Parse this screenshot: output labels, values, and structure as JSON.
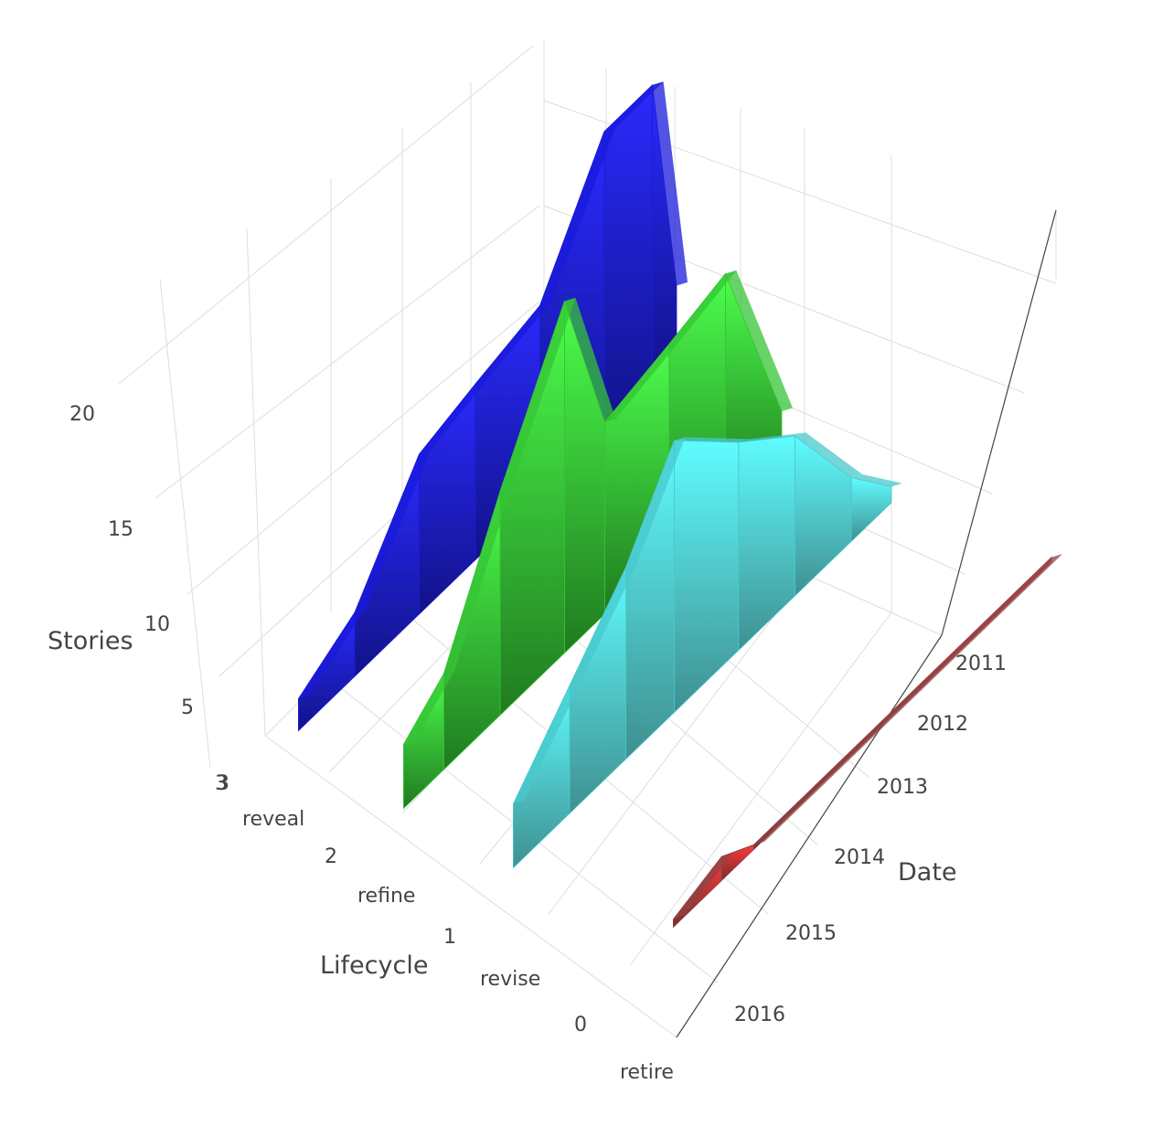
{
  "chart_data": {
    "type": "3d-ribbon",
    "axes": {
      "x": {
        "title": "Date",
        "ticks": [
          "2011",
          "2012",
          "2013",
          "2014",
          "2015",
          "2016"
        ]
      },
      "y": {
        "title": "Lifecycle",
        "ticks": [
          "3",
          "reveal",
          "2",
          "refine",
          "1",
          "revise",
          "0",
          "retire"
        ]
      },
      "z": {
        "title": "Stories",
        "ticks": [
          "3",
          "5",
          "10",
          "15",
          "20"
        ]
      }
    },
    "series": [
      {
        "lifecycle": "reveal",
        "color": "#1a1adb",
        "points": [
          {
            "date": 2011.3,
            "stories": 5
          },
          {
            "date": 2011.6,
            "stories": 19
          },
          {
            "date": 2012.2,
            "stories": 19
          },
          {
            "date": 2013.0,
            "stories": 12
          },
          {
            "date": 2013.8,
            "stories": 11
          },
          {
            "date": 2014.5,
            "stories": 10
          },
          {
            "date": 2015.3,
            "stories": 4
          },
          {
            "date": 2016.0,
            "stories": 2
          }
        ]
      },
      {
        "lifecycle": "refine",
        "color": "#35c435",
        "points": [
          {
            "date": 2011.3,
            "stories": 2
          },
          {
            "date": 2012.0,
            "stories": 14
          },
          {
            "date": 2012.7,
            "stories": 13
          },
          {
            "date": 2013.5,
            "stories": 12
          },
          {
            "date": 2014.0,
            "stories": 22
          },
          {
            "date": 2014.8,
            "stories": 14
          },
          {
            "date": 2015.5,
            "stories": 6
          },
          {
            "date": 2016.0,
            "stories": 4
          }
        ]
      },
      {
        "lifecycle": "revise",
        "color": "#48c8cc",
        "points": [
          {
            "date": 2011.3,
            "stories": 1
          },
          {
            "date": 2011.8,
            "stories": 4
          },
          {
            "date": 2012.5,
            "stories": 10
          },
          {
            "date": 2013.2,
            "stories": 13
          },
          {
            "date": 2014.0,
            "stories": 17
          },
          {
            "date": 2014.6,
            "stories": 12
          },
          {
            "date": 2015.3,
            "stories": 8
          },
          {
            "date": 2016.0,
            "stories": 4
          }
        ]
      },
      {
        "lifecycle": "retire",
        "color": "#8b4444",
        "points": [
          {
            "date": 2011.3,
            "stories": 0.3
          },
          {
            "date": 2015.0,
            "stories": 0.3
          },
          {
            "date": 2015.4,
            "stories": 1.5
          },
          {
            "date": 2016.0,
            "stories": 0.5
          }
        ]
      }
    ]
  }
}
